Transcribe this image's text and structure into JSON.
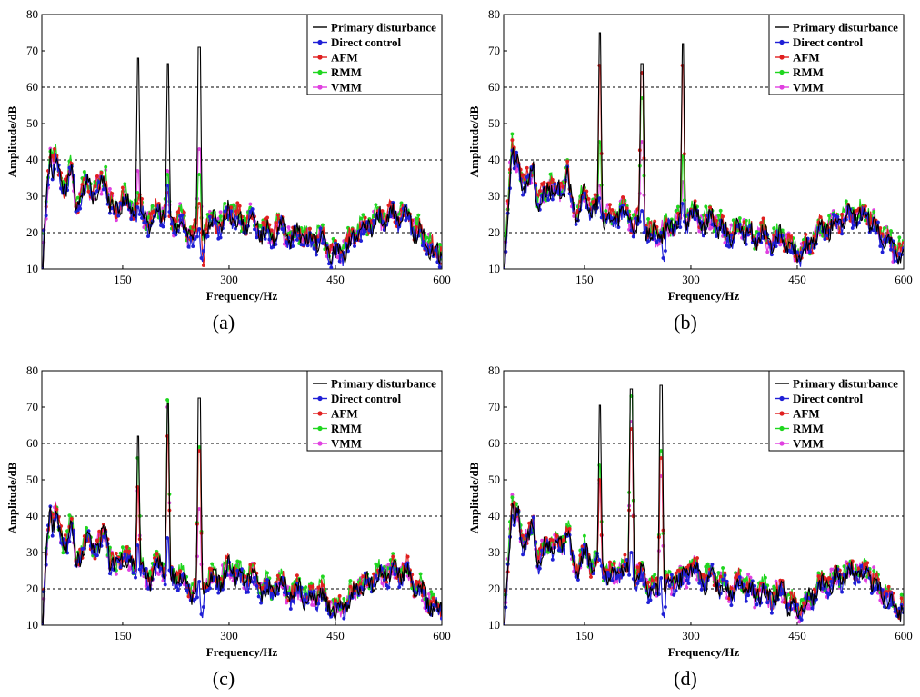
{
  "figure": {
    "shared": {
      "xlabel": "Frequency/Hz",
      "ylabel": "Amplitude/dB",
      "xlim": [
        36,
        600
      ],
      "ylim": [
        10,
        80
      ],
      "xticks": [
        150,
        300,
        450,
        600
      ],
      "yticks": [
        10,
        20,
        30,
        40,
        50,
        60,
        70,
        80
      ],
      "grid_lines_y": [
        20,
        40,
        60
      ],
      "legend": {
        "position": "top-right",
        "entries": [
          "Primary disturbance",
          "Direct control",
          "AFM",
          "RMM",
          "VMM"
        ]
      },
      "colors": {
        "Primary disturbance": "#000000",
        "Direct control": "#1f1fd6",
        "AFM": "#e01f1f",
        "RMM": "#1fd61f",
        "VMM": "#e040e0"
      }
    }
  },
  "chart_data": [
    {
      "panel_label": "(a)",
      "type": "line",
      "xlabel": "Frequency/Hz",
      "ylabel": "Amplitude/dB",
      "xlim": [
        36,
        600
      ],
      "ylim": [
        10,
        80
      ],
      "peaks": {
        "Primary disturbance": [
          [
            172,
            68
          ],
          [
            214,
            66.5
          ],
          [
            258,
            71
          ]
        ],
        "Direct control": [
          [
            172,
            27
          ],
          [
            214,
            33
          ],
          [
            258,
            21
          ]
        ],
        "AFM": [
          [
            172,
            28
          ],
          [
            214,
            31
          ],
          [
            258,
            28
          ]
        ],
        "RMM": [
          [
            172,
            31
          ],
          [
            214,
            36
          ],
          [
            258,
            36
          ]
        ],
        "VMM": [
          [
            172,
            37
          ],
          [
            214,
            37
          ],
          [
            258,
            43
          ]
        ]
      },
      "series": [
        {
          "name": "Primary disturbance"
        },
        {
          "name": "Direct control"
        },
        {
          "name": "AFM"
        },
        {
          "name": "RMM"
        },
        {
          "name": "VMM"
        }
      ]
    },
    {
      "panel_label": "(b)",
      "type": "line",
      "xlabel": "Frequency/Hz",
      "ylabel": "Amplitude/dB",
      "xlim": [
        36,
        600
      ],
      "ylim": [
        10,
        80
      ],
      "peaks": {
        "Primary disturbance": [
          [
            172,
            75
          ],
          [
            231,
            66.5
          ],
          [
            289,
            72
          ]
        ],
        "Direct control": [
          [
            172,
            26
          ],
          [
            231,
            26
          ],
          [
            289,
            28
          ]
        ],
        "AFM": [
          [
            172,
            66
          ],
          [
            231,
            64
          ],
          [
            289,
            66
          ]
        ],
        "RMM": [
          [
            172,
            45
          ],
          [
            231,
            57
          ],
          [
            289,
            41
          ]
        ],
        "VMM": [
          [
            172,
            33
          ],
          [
            231,
            45
          ],
          [
            289,
            34
          ]
        ]
      },
      "series": [
        {
          "name": "Primary disturbance"
        },
        {
          "name": "Direct control"
        },
        {
          "name": "AFM"
        },
        {
          "name": "RMM"
        },
        {
          "name": "VMM"
        }
      ]
    },
    {
      "panel_label": "(c)",
      "type": "line",
      "xlabel": "Frequency/Hz",
      "ylabel": "Amplitude/dB",
      "xlim": [
        36,
        600
      ],
      "ylim": [
        10,
        80
      ],
      "peaks": {
        "Primary disturbance": [
          [
            172,
            62
          ],
          [
            214,
            71
          ],
          [
            258,
            72.5
          ]
        ],
        "Direct control": [
          [
            172,
            32
          ],
          [
            214,
            34
          ],
          [
            258,
            22
          ]
        ],
        "AFM": [
          [
            172,
            48
          ],
          [
            214,
            62
          ],
          [
            258,
            58
          ]
        ],
        "RMM": [
          [
            172,
            56
          ],
          [
            214,
            72
          ],
          [
            258,
            59
          ]
        ],
        "VMM": [
          [
            172,
            47
          ],
          [
            214,
            70
          ],
          [
            258,
            42
          ]
        ]
      },
      "series": [
        {
          "name": "Primary disturbance"
        },
        {
          "name": "Direct control"
        },
        {
          "name": "AFM"
        },
        {
          "name": "RMM"
        },
        {
          "name": "VMM"
        }
      ]
    },
    {
      "panel_label": "(d)",
      "type": "line",
      "xlabel": "Frequency/Hz",
      "ylabel": "Amplitude/dB",
      "xlim": [
        36,
        600
      ],
      "ylim": [
        10,
        80
      ],
      "peaks": {
        "Primary disturbance": [
          [
            172,
            70.5
          ],
          [
            216,
            75
          ],
          [
            258,
            76
          ]
        ],
        "Direct control": [
          [
            172,
            28
          ],
          [
            216,
            30
          ],
          [
            258,
            23
          ]
        ],
        "AFM": [
          [
            172,
            50
          ],
          [
            216,
            64
          ],
          [
            258,
            56
          ]
        ],
        "RMM": [
          [
            172,
            54
          ],
          [
            216,
            73
          ],
          [
            258,
            58
          ]
        ],
        "VMM": [
          [
            172,
            49
          ],
          [
            216,
            66
          ],
          [
            258,
            51
          ]
        ]
      },
      "series": [
        {
          "name": "Primary disturbance"
        },
        {
          "name": "Direct control"
        },
        {
          "name": "AFM"
        },
        {
          "name": "RMM"
        },
        {
          "name": "VMM"
        }
      ]
    }
  ]
}
